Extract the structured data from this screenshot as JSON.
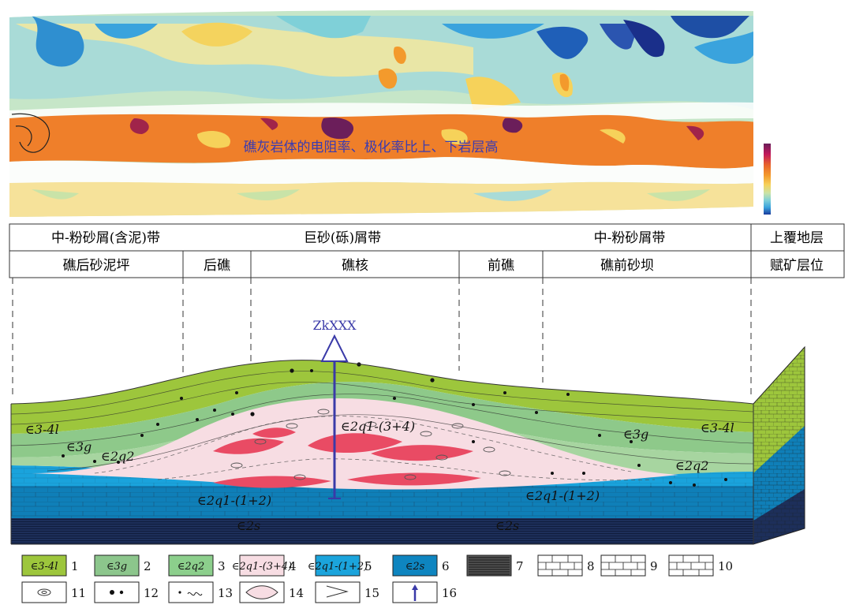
{
  "section_overlay_text": "礁灰岩体的电阻率、极化率比上、下岩层高",
  "table": {
    "row1": {
      "cells": [
        "中-粉砂屑(含泥)带",
        "巨砂(砾)屑带",
        "中-粉砂屑带",
        "上覆地层"
      ]
    },
    "row2": {
      "cells": [
        "礁后砂泥坪",
        "后礁",
        "礁核",
        "前礁",
        "礁前砂坝",
        "赋矿层位"
      ]
    }
  },
  "drill_label": "ZkXXX",
  "layer_labels": {
    "c34l_left": "∈3-4l",
    "c3g_left": "∈3g",
    "c2q2_left": "∈2q2",
    "core": "∈2q1-(3+4)",
    "c3g_right": "∈3g",
    "c34l_right": "∈3-4l",
    "c2q2_right": "∈2q2",
    "c2q12_left": "∈2q1-(1+2)",
    "c2q12_right": "∈2q1-(1+2)",
    "c2s_left": "∈2s",
    "c2s_right": "∈2s"
  },
  "legend": [
    {
      "num": "1",
      "label": "∈3-4l",
      "color": "#9dc63c"
    },
    {
      "num": "2",
      "label": "∈3g",
      "color": "#8cc68c"
    },
    {
      "num": "3",
      "label": "∈2q2",
      "color": "#8ccf8c"
    },
    {
      "num": "4",
      "label": "∈2q1-(3+4)",
      "color": "#f7dde3"
    },
    {
      "num": "5",
      "label": "∈2q1-(1+2)",
      "color": "#1ba4dc"
    },
    {
      "num": "6",
      "label": "∈2s",
      "color": "#0e85c0"
    },
    {
      "num": "7",
      "label": "",
      "color": "#555555"
    },
    {
      "num": "8",
      "label": "",
      "color": "#ffffff"
    },
    {
      "num": "9",
      "label": "",
      "color": "#ffffff"
    },
    {
      "num": "10",
      "label": "",
      "color": "#ffffff"
    },
    {
      "num": "11",
      "label": "",
      "color": "#ffffff"
    },
    {
      "num": "12",
      "label": "",
      "color": "#ffffff"
    },
    {
      "num": "13",
      "label": "",
      "color": "#ffffff"
    },
    {
      "num": "14",
      "label": "",
      "color": "#f7dde3"
    },
    {
      "num": "15",
      "label": "",
      "color": "#ffffff"
    },
    {
      "num": "16",
      "label": "",
      "color": "#ffffff"
    }
  ],
  "colors": {
    "green_top": "#9dc63c",
    "green_mid": "#8ec98a",
    "green_low": "#a7d5a0",
    "pink_core": "#f7dde3",
    "red_lens": "#e94b64",
    "blue_upper": "#1aa3dc",
    "blue_lower": "#0f7fb8",
    "dark_base": "#1d2f5a",
    "drill": "#3a3aa8"
  },
  "colorbar_colors": [
    "#6b1e5a",
    "#c2185b",
    "#e8632c",
    "#f39a2c",
    "#f6d25a",
    "#c9e3a8",
    "#7fd0d8",
    "#3aa3dd",
    "#1a3b9c"
  ]
}
